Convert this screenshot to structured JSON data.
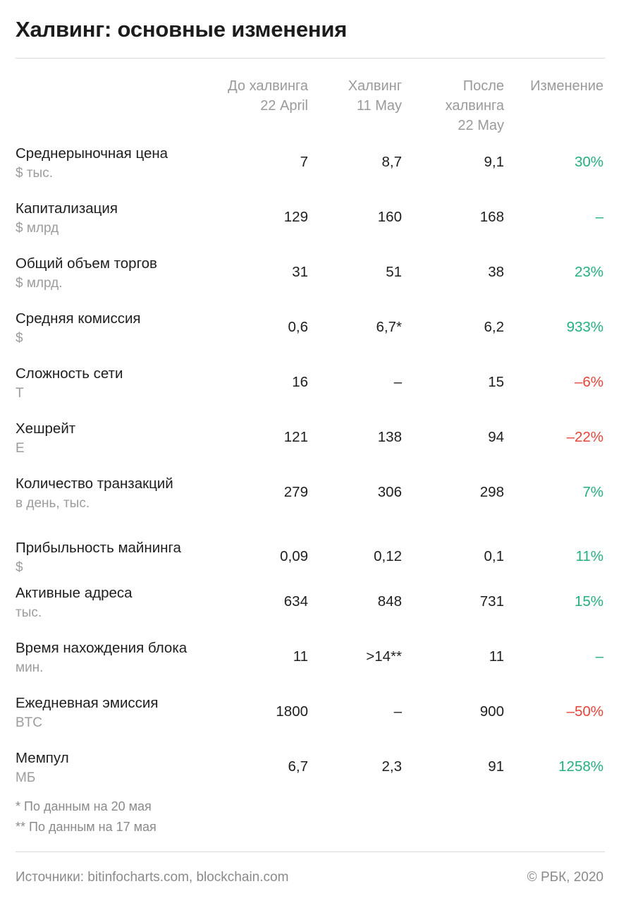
{
  "title": "Халвинг: основные изменения",
  "headers": {
    "before": "До халвинга\n22 April",
    "halving": "Халвинг\n11 May",
    "after": "После\nхалвинга\n22 May",
    "change": "Изменение"
  },
  "rows": [
    {
      "name": "Среднерыночная цена",
      "unit": "$ тыс.",
      "before": "7",
      "halving": "8,7",
      "after": "9,1",
      "change": "30%",
      "trend": "pos"
    },
    {
      "name": "Капитализация",
      "unit": "$ млрд",
      "before": "129",
      "halving": "160",
      "after": "168",
      "change": "–",
      "trend": "pos"
    },
    {
      "name": "Общий объем торгов",
      "unit": "$ млрд.",
      "before": "31",
      "halving": "51",
      "after": "38",
      "change": "23%",
      "trend": "pos"
    },
    {
      "name": "Средняя комиссия",
      "unit": "$",
      "before": "0,6",
      "halving": "6,7*",
      "after": "6,2",
      "change": "933%",
      "trend": "pos"
    },
    {
      "name": "Сложность сети",
      "unit": "T",
      "before": "16",
      "halving": "–",
      "after": "15",
      "change": "–6%",
      "trend": "neg"
    },
    {
      "name": "Хешрейт",
      "unit": "E",
      "before": "121",
      "halving": "138",
      "after": "94",
      "change": "–22%",
      "trend": "neg"
    },
    {
      "name": "Количество транзакций",
      "unit": "в день, тыс.",
      "before": "279",
      "halving": "306",
      "after": "298",
      "change": "7%",
      "trend": "pos"
    },
    {
      "name": "Прибыльность майнинга",
      "unit": "$",
      "before": "0,09",
      "halving": "0,12",
      "after": "0,1",
      "change": "11%",
      "trend": "pos"
    },
    {
      "name": "Активные адреса",
      "unit": "тыс.",
      "before": "634",
      "halving": "848",
      "after": "731",
      "change": "15%",
      "trend": "pos"
    },
    {
      "name": "Время нахождения блока",
      "unit": "мин.",
      "before": "11",
      "halving": ">14**",
      "after": "11",
      "change": "–",
      "trend": "pos"
    },
    {
      "name": "Ежедневная эмиссия",
      "unit": "BTC",
      "before": "1800",
      "halving": "–",
      "after": "900",
      "change": "–50%",
      "trend": "neg"
    },
    {
      "name": "Мемпул",
      "unit": "МБ",
      "before": "6,7",
      "halving": "2,3",
      "after": "91",
      "change": "1258%",
      "trend": "pos"
    }
  ],
  "notes": {
    "note1": "* По данным на 20 мая",
    "note2": "** По данным на 17 мая"
  },
  "footer": {
    "sources": "Источники: bitinfocharts.com, blockchain.com",
    "copyright": "© РБК, 2020"
  },
  "colors": {
    "positive": "#22b07d",
    "negative": "#e8443a"
  }
}
